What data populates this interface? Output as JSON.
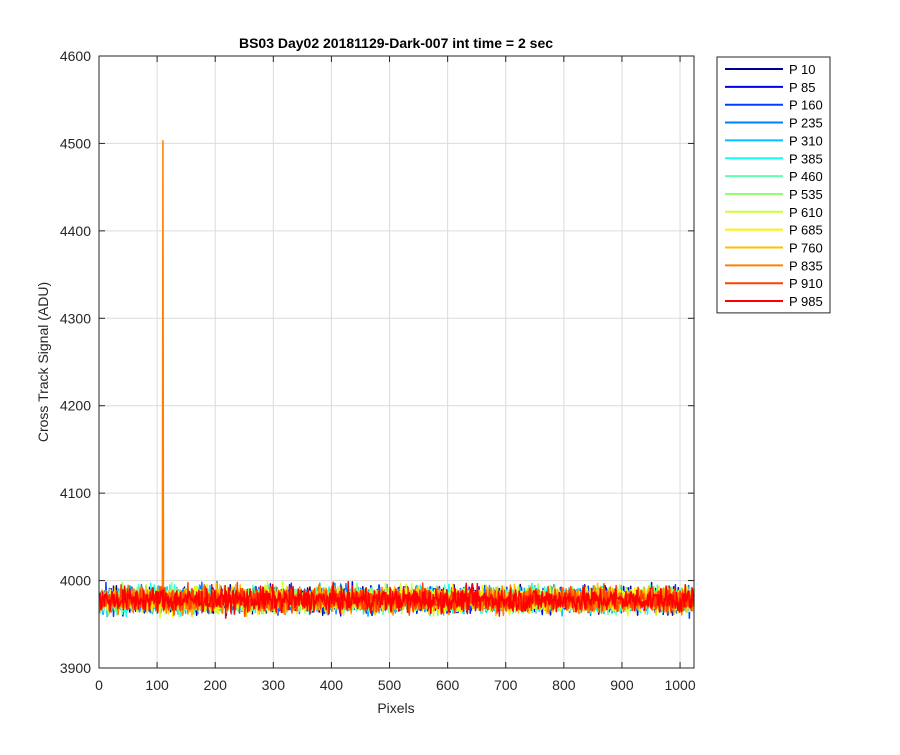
{
  "chart_data": {
    "type": "line",
    "title": "BS03 Day02 20181129-Dark-007 int time = 2 sec",
    "xlabel": "Pixels",
    "ylabel": "Cross Track Signal (ADU)",
    "xlim": [
      0,
      1024
    ],
    "ylim": [
      3900,
      4600
    ],
    "xticks": [
      0,
      100,
      200,
      300,
      400,
      500,
      600,
      700,
      800,
      900,
      1000
    ],
    "yticks": [
      3900,
      4000,
      4100,
      4200,
      4300,
      4400,
      4500,
      4600
    ],
    "grid": true,
    "legend_position": "outside-top-right",
    "noise_baseline": 3978,
    "noise_half_band": 14,
    "x_count": 1024,
    "series": [
      {
        "name": "P 10",
        "color": "#00008F"
      },
      {
        "name": "P 85",
        "color": "#0000EE"
      },
      {
        "name": "P 160",
        "color": "#0040FF"
      },
      {
        "name": "P 235",
        "color": "#0080FF"
      },
      {
        "name": "P 310",
        "color": "#00C0FF"
      },
      {
        "name": "P 385",
        "color": "#10FFEF"
      },
      {
        "name": "P 460",
        "color": "#60FFB0"
      },
      {
        "name": "P 535",
        "color": "#90FF70"
      },
      {
        "name": "P 610",
        "color": "#D0FF30"
      },
      {
        "name": "P 685",
        "color": "#FFF000"
      },
      {
        "name": "P 760",
        "color": "#FFC000"
      },
      {
        "name": "P 835",
        "color": "#FF8000",
        "spike": {
          "x": 110,
          "y": 4503
        }
      },
      {
        "name": "P 910",
        "color": "#FF4000"
      },
      {
        "name": "P 985",
        "color": "#FF0000"
      }
    ]
  }
}
